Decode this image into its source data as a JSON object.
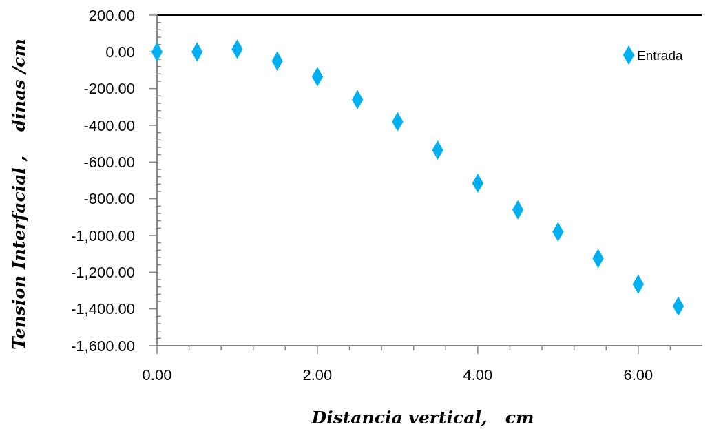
{
  "chart_data": {
    "type": "scatter",
    "xlabel": "Distancia vertical,   cm",
    "ylabel": "Tension Interfacial ,    dinas /cm",
    "x": [
      0,
      0.5,
      1,
      1.5,
      2,
      2.5,
      3,
      3.5,
      4,
      4.5,
      5,
      5.5,
      6,
      6.5
    ],
    "series": [
      {
        "name": "Entrada",
        "color": "#00b0f0",
        "values": [
          0,
          0,
          15,
          -50,
          -135,
          -260,
          -380,
          -535,
          -715,
          -860,
          -980,
          -1125,
          -1265,
          -1385
        ]
      }
    ],
    "xlim": [
      0,
      6.8
    ],
    "xticks": [
      {
        "value": 0,
        "label": "0.00"
      },
      {
        "value": 0.4,
        "label": null
      },
      {
        "value": 0.8,
        "label": null
      },
      {
        "value": 1.2,
        "label": null
      },
      {
        "value": 1.6,
        "label": null
      },
      {
        "value": 2,
        "label": "2.00"
      },
      {
        "value": 2.4,
        "label": null
      },
      {
        "value": 2.8,
        "label": null
      },
      {
        "value": 3.2,
        "label": null
      },
      {
        "value": 3.6,
        "label": null
      },
      {
        "value": 4,
        "label": "4.00"
      },
      {
        "value": 4.4,
        "label": null
      },
      {
        "value": 4.8,
        "label": null
      },
      {
        "value": 5.2,
        "label": null
      },
      {
        "value": 5.6,
        "label": null
      },
      {
        "value": 6,
        "label": "6.00"
      },
      {
        "value": 6.4,
        "label": null
      }
    ],
    "ylim": [
      -1600,
      200
    ],
    "yticks": [
      {
        "value": -1600,
        "label": "-1,600.00"
      },
      {
        "value": -1400,
        "label": "-1,400.00"
      },
      {
        "value": -1200,
        "label": "-1,200.00"
      },
      {
        "value": -1000,
        "label": "-1,000.00"
      },
      {
        "value": -800,
        "label": "-800.00"
      },
      {
        "value": -600,
        "label": "-600.00"
      },
      {
        "value": -400,
        "label": "-400.00"
      },
      {
        "value": -200,
        "label": "-200.00"
      },
      {
        "value": 0,
        "label": "0.00"
      },
      {
        "value": 200,
        "label": "200.00"
      }
    ],
    "marker": "diamond",
    "legend": "top right",
    "grid": false
  }
}
